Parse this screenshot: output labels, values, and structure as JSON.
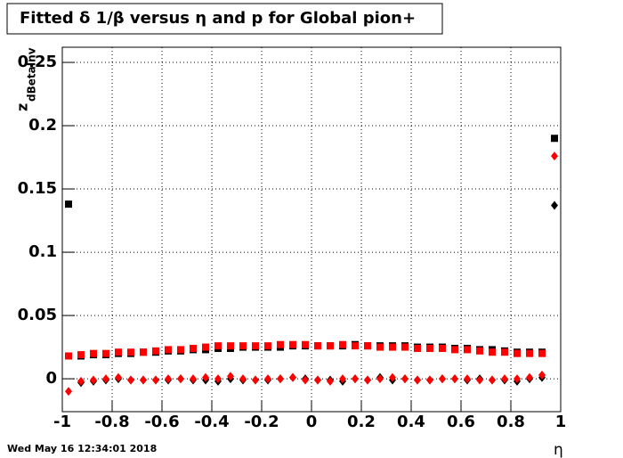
{
  "chart_data": {
    "type": "scatter",
    "title": "Fitted δ 1/β versus η and p for Global pion+",
    "x_label": "η",
    "y_label": "z",
    "y_label_sub": "dBetaInv",
    "footer": "Wed May 16 12:34:01 2018",
    "xlim": [
      -1,
      1
    ],
    "ylim": [
      -0.026,
      0.262
    ],
    "xticks": [
      -1,
      -0.8,
      -0.6,
      -0.4,
      -0.2,
      0,
      0.2,
      0.4,
      0.6,
      0.8,
      1
    ],
    "yticks": [
      0,
      0.05,
      0.1,
      0.15,
      0.2,
      0.25
    ],
    "grid": true,
    "x": [
      -0.975,
      -0.925,
      -0.875,
      -0.825,
      -0.775,
      -0.725,
      -0.675,
      -0.625,
      -0.575,
      -0.525,
      -0.475,
      -0.425,
      -0.375,
      -0.325,
      -0.275,
      -0.225,
      -0.175,
      -0.125,
      -0.075,
      -0.025,
      0.025,
      0.075,
      0.125,
      0.175,
      0.225,
      0.275,
      0.325,
      0.375,
      0.425,
      0.475,
      0.525,
      0.575,
      0.625,
      0.675,
      0.725,
      0.775,
      0.825,
      0.875,
      0.925,
      0.975
    ],
    "series": [
      {
        "color": "#000000",
        "marker": "square",
        "values": [
          0.138,
          0.018,
          0.019,
          0.019,
          0.02,
          0.02,
          0.021,
          0.021,
          0.022,
          0.022,
          0.023,
          0.023,
          0.024,
          0.024,
          0.025,
          0.025,
          0.025,
          0.025,
          0.026,
          0.026,
          0.026,
          0.026,
          0.026,
          0.027,
          0.026,
          0.026,
          0.026,
          0.026,
          0.025,
          0.025,
          0.025,
          0.024,
          0.024,
          0.023,
          0.023,
          0.022,
          0.021,
          0.021,
          0.021,
          0.19
        ]
      },
      {
        "color": "#ff0000",
        "marker": "square",
        "values": [
          0.018,
          0.019,
          0.02,
          0.02,
          0.021,
          0.021,
          0.021,
          0.022,
          0.023,
          0.023,
          0.024,
          0.025,
          0.026,
          0.026,
          0.026,
          0.026,
          0.026,
          0.027,
          0.027,
          0.027,
          0.026,
          0.026,
          0.027,
          0.026,
          0.026,
          0.025,
          0.025,
          0.025,
          0.024,
          0.024,
          0.024,
          0.023,
          0.023,
          0.022,
          0.021,
          0.021,
          0.02,
          0.02,
          0.02,
          null
        ]
      },
      {
        "color": "#000000",
        "marker": "diamond",
        "values": [
          null,
          -0.003,
          -0.002,
          -0.001,
          0.0,
          -0.001,
          -0.001,
          -0.001,
          -0.001,
          0.0,
          -0.001,
          -0.001,
          -0.002,
          0.0,
          -0.001,
          -0.001,
          -0.001,
          0.0,
          0.001,
          0.0,
          -0.001,
          -0.001,
          -0.002,
          0.0,
          -0.001,
          0.001,
          -0.001,
          0.0,
          -0.001,
          -0.001,
          0.0,
          0.0,
          -0.001,
          0.0,
          -0.001,
          -0.001,
          -0.002,
          0.0,
          0.001,
          0.137
        ]
      },
      {
        "color": "#ff0000",
        "marker": "diamond",
        "values": [
          -0.01,
          -0.002,
          -0.001,
          0.0,
          0.001,
          -0.001,
          -0.001,
          -0.001,
          0.0,
          0.0,
          0.0,
          0.001,
          0.0,
          0.002,
          0.0,
          -0.001,
          0.0,
          0.0,
          0.001,
          -0.001,
          -0.001,
          -0.002,
          0.0,
          0.0,
          -0.001,
          0.0,
          0.001,
          0.0,
          -0.001,
          -0.001,
          0.0,
          0.0,
          0.0,
          -0.001,
          -0.001,
          0.0,
          0.0,
          0.001,
          0.003,
          0.176
        ]
      }
    ]
  }
}
